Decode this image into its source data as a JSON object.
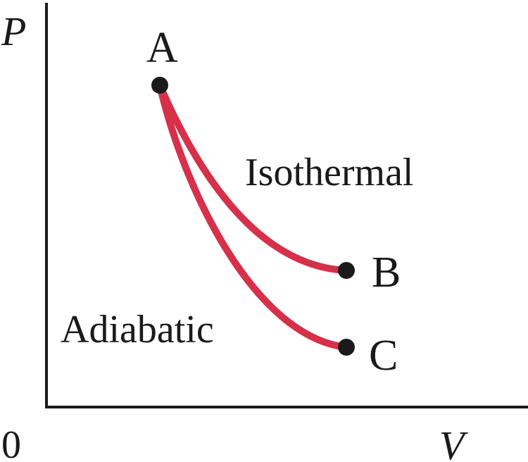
{
  "axes": {
    "y_label": "P",
    "x_label": "V",
    "origin_label": "0"
  },
  "points": {
    "a": "A",
    "b": "B",
    "c": "C"
  },
  "curves": {
    "isothermal_label": "Isothermal",
    "adiabatic_label": "Adiabatic",
    "color": "#d6304a"
  },
  "colors": {
    "axis": "#1a1a1a",
    "point": "#1a1a1a",
    "text": "#1a1a1a"
  }
}
